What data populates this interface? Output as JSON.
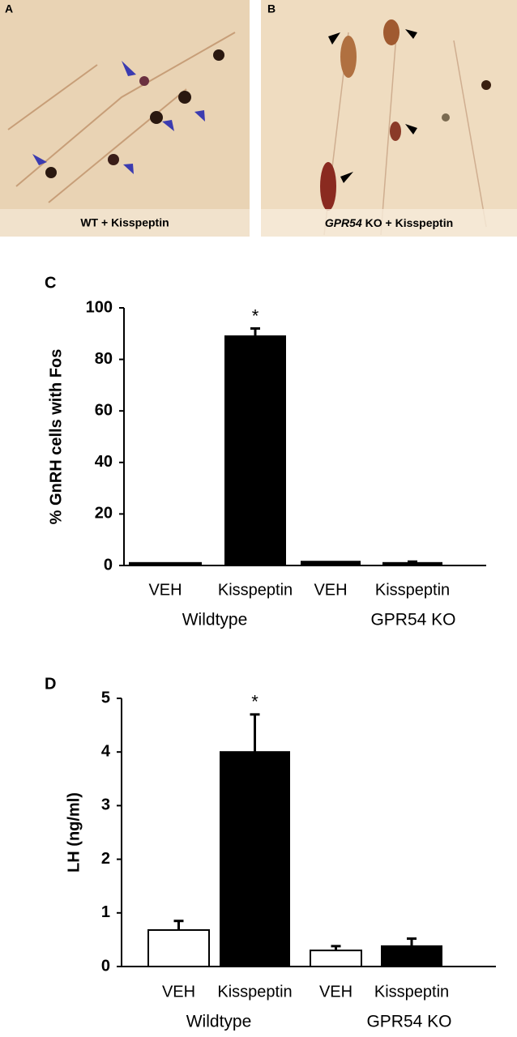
{
  "panels": [
    {
      "label": "A",
      "caption": "WT + Kisspeptin"
    },
    {
      "label": "B",
      "caption_italic": "GPR54",
      "caption": "KO + Kisspeptin"
    }
  ],
  "chart_data": [
    {
      "type": "bar",
      "panel": "C",
      "ylabel": "% GnRH cells with Fos",
      "categories": [
        "VEH",
        "Kisspeptin",
        "VEH",
        "Kisspeptin"
      ],
      "groups": [
        "Wildtype",
        "GPR54 KO"
      ],
      "values": [
        1,
        89,
        1.5,
        1
      ],
      "errors": [
        0,
        3,
        0,
        0.5
      ],
      "colors": [
        "#000000",
        "#000000",
        "#000000",
        "#000000"
      ],
      "annotations": [
        null,
        "*",
        null,
        null
      ],
      "ylim": [
        0,
        100
      ],
      "yticks": [
        0,
        20,
        40,
        60,
        80,
        100
      ]
    },
    {
      "type": "bar",
      "panel": "D",
      "ylabel": "LH (ng/ml)",
      "categories": [
        "VEH",
        "Kisspeptin",
        "VEH",
        "Kisspeptin"
      ],
      "groups": [
        "Wildtype",
        "GPR54 KO"
      ],
      "values": [
        0.68,
        4.0,
        0.3,
        0.38
      ],
      "errors": [
        0.17,
        0.7,
        0.08,
        0.14
      ],
      "colors": [
        "#ffffff",
        "#000000",
        "#ffffff",
        "#000000"
      ],
      "annotations": [
        null,
        "*",
        null,
        null
      ],
      "ylim": [
        0,
        5
      ],
      "yticks": [
        0,
        1,
        2,
        3,
        4,
        5
      ]
    }
  ]
}
